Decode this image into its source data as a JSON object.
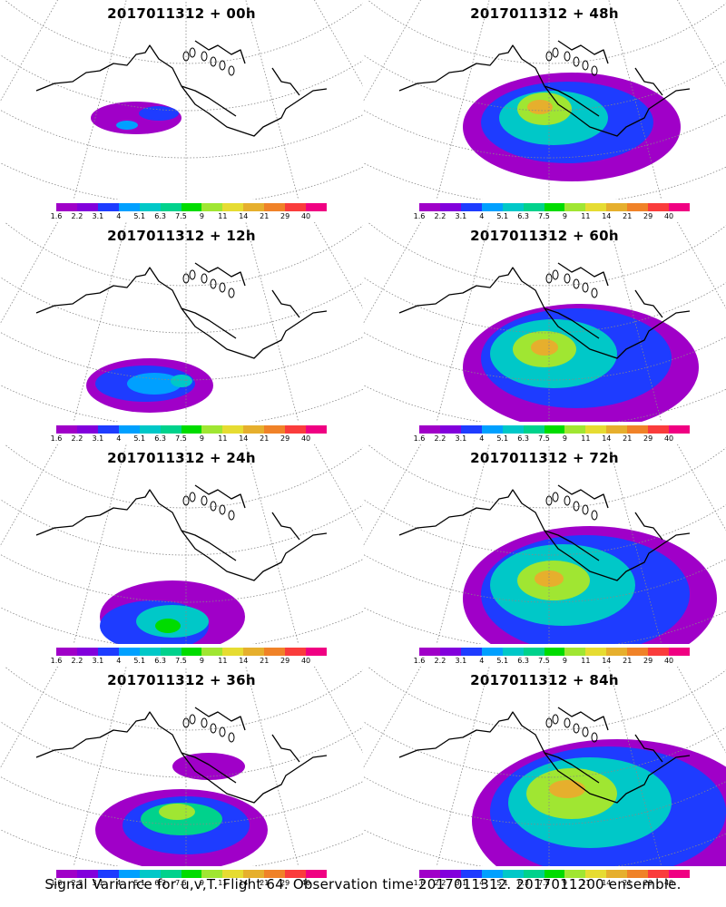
{
  "panels": [
    {
      "id": "p00",
      "title": "2017011312 + 00h",
      "intensity": 0
    },
    {
      "id": "p48",
      "title": "2017011312 + 48h",
      "intensity": 4
    },
    {
      "id": "p12",
      "title": "2017011312 + 12h",
      "intensity": 1
    },
    {
      "id": "p60",
      "title": "2017011312 + 60h",
      "intensity": 5
    },
    {
      "id": "p24",
      "title": "2017011312 + 24h",
      "intensity": 2
    },
    {
      "id": "p72",
      "title": "2017011312 + 72h",
      "intensity": 6
    },
    {
      "id": "p36",
      "title": "2017011312 + 36h",
      "intensity": 3
    },
    {
      "id": "p84",
      "title": "2017011312 + 84h",
      "intensity": 7
    }
  ],
  "colorbar": {
    "colors": [
      "#a000c8",
      "#8200dc",
      "#1e3cff",
      "#00a0ff",
      "#00c8c8",
      "#00d28c",
      "#00dc00",
      "#a0e632",
      "#e6dc32",
      "#e6af2d",
      "#f08228",
      "#fa3c3c",
      "#f00082"
    ],
    "labels": [
      "1.6",
      "2.2",
      "3.1",
      "4",
      "5.1",
      "6.3",
      "7.5",
      "9",
      "11",
      "14",
      "21",
      "29",
      "40"
    ]
  },
  "footer": "Signal Variance for u,v,T. Flight 64. Observation time 2017011312. 2017011200 ensemble."
}
